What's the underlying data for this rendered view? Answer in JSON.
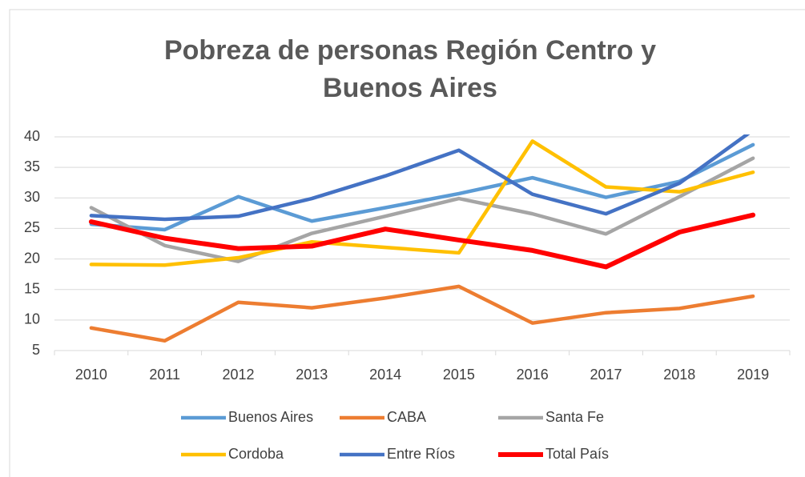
{
  "chart_data": {
    "type": "line",
    "title": "Pobreza de personas Región Centro y Buenos Aires",
    "categories": [
      "2010",
      "2011",
      "2012",
      "2013",
      "2014",
      "2015",
      "2016",
      "2017",
      "2018",
      "2019"
    ],
    "series": [
      {
        "name": "Buenos Aires",
        "color": "#5b9bd5",
        "values": [
          25.7,
          24.8,
          30.2,
          26.2,
          28.4,
          30.7,
          33.3,
          30.1,
          32.7,
          38.7
        ]
      },
      {
        "name": "CABA",
        "color": "#ed7d31",
        "values": [
          8.7,
          6.6,
          12.9,
          12.0,
          13.6,
          15.5,
          9.5,
          11.2,
          11.9,
          13.9
        ]
      },
      {
        "name": "Santa Fe",
        "color": "#a5a5a5",
        "values": [
          28.4,
          22.2,
          19.6,
          24.2,
          27.0,
          29.9,
          27.4,
          24.1,
          30.2,
          36.5
        ]
      },
      {
        "name": "Cordoba",
        "color": "#ffc000",
        "values": [
          19.1,
          19.0,
          20.2,
          22.8,
          21.9,
          21.0,
          39.3,
          31.8,
          31.0,
          34.2
        ]
      },
      {
        "name": "Entre Ríos",
        "color": "#4472c4",
        "values": [
          27.1,
          26.5,
          27.0,
          29.9,
          33.6,
          37.8,
          30.6,
          27.4,
          32.4,
          41.1
        ]
      },
      {
        "name": "Total País",
        "color": "#ff0000",
        "values": [
          26.1,
          23.4,
          21.7,
          22.1,
          24.9,
          23.1,
          21.4,
          18.7,
          24.4,
          27.2
        ]
      }
    ],
    "ylim": [
      5,
      40
    ],
    "yticks": [
      5,
      10,
      15,
      20,
      25,
      30,
      35,
      40
    ],
    "grid": true,
    "legend": "bottom"
  }
}
